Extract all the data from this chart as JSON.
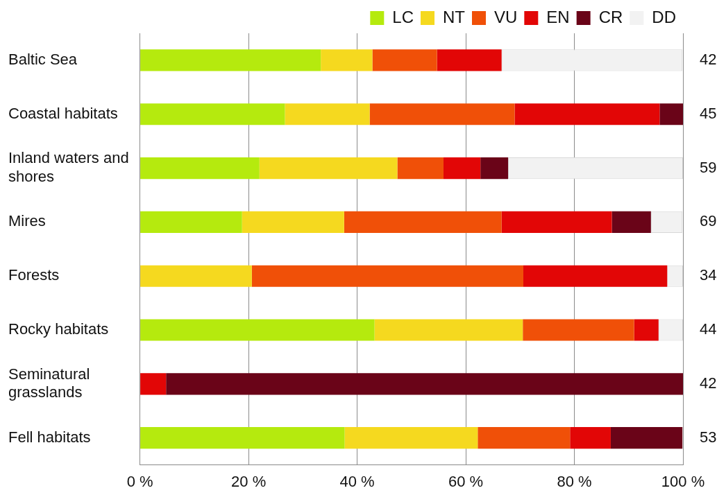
{
  "chart_data": {
    "type": "bar",
    "orientation": "horizontal",
    "stacked": true,
    "categories": [
      "Baltic Sea",
      "Coastal habitats",
      "Inland waters and shores",
      "Mires",
      "Forests",
      "Rocky habitats",
      "Seminatural grasslands",
      "Fell habitats"
    ],
    "series": [
      {
        "name": "LC",
        "color": "#b5ea0e",
        "values": [
          33.3,
          26.7,
          22.0,
          18.8,
          0,
          43.2,
          0,
          37.7
        ]
      },
      {
        "name": "NT",
        "color": "#f5d91f",
        "values": [
          9.5,
          15.6,
          25.4,
          18.8,
          20.6,
          27.3,
          0,
          24.5
        ]
      },
      {
        "name": "VU",
        "color": "#f05008",
        "values": [
          11.9,
          26.7,
          8.5,
          29.0,
          50.0,
          20.5,
          0,
          17.0
        ]
      },
      {
        "name": "EN",
        "color": "#e20606",
        "values": [
          11.9,
          26.7,
          6.8,
          20.3,
          26.5,
          4.5,
          4.8,
          7.5
        ]
      },
      {
        "name": "CR",
        "color": "#6a0418",
        "values": [
          0,
          4.4,
          5.1,
          7.2,
          0,
          0,
          95.2,
          13.2
        ]
      },
      {
        "name": "DD",
        "color": "#f2f2f2",
        "values": [
          33.3,
          0,
          32.2,
          5.8,
          2.9,
          4.5,
          0,
          0
        ]
      }
    ],
    "xlim": [
      0,
      100
    ],
    "xticks": [
      {
        "value": 0,
        "label": "0 %"
      },
      {
        "value": 20,
        "label": "20 %"
      },
      {
        "value": 40,
        "label": "40 %"
      },
      {
        "value": 60,
        "label": "60 %"
      },
      {
        "value": 80,
        "label": "80 %"
      },
      {
        "value": 100,
        "label": "100 %"
      }
    ],
    "grid": "x",
    "legend": "top right",
    "annotations": [
      "42",
      "45",
      "59",
      "69",
      "34",
      "44",
      "42",
      "53"
    ]
  }
}
